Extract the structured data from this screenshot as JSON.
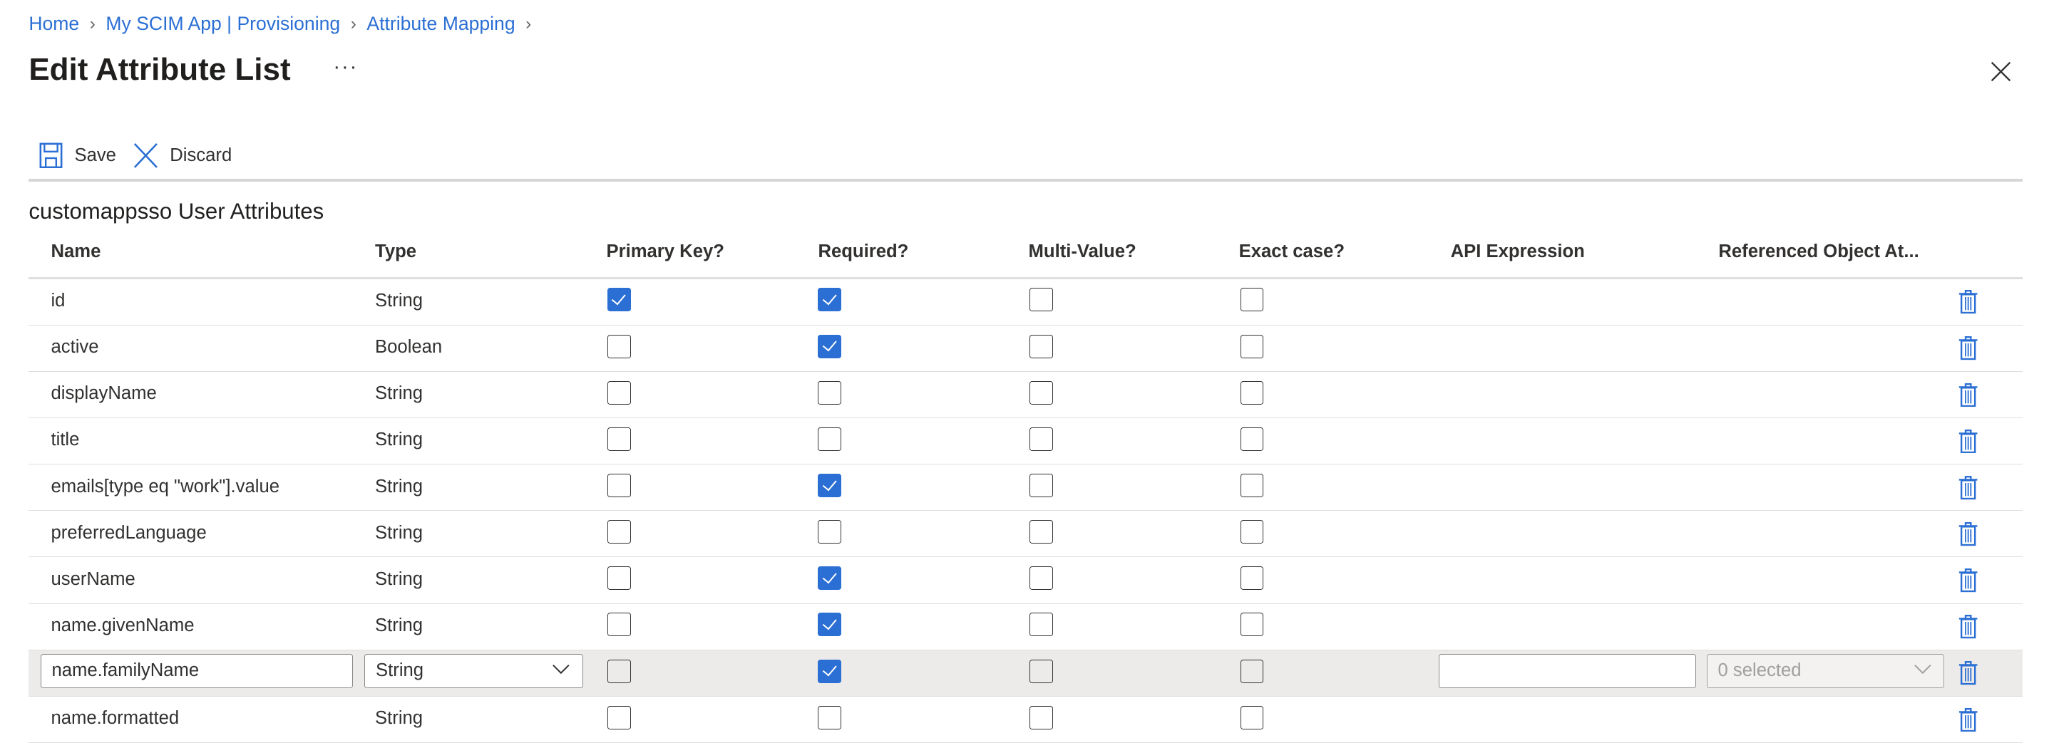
{
  "breadcrumb": [
    "Home",
    "My SCIM App | Provisioning",
    "Attribute Mapping"
  ],
  "title": "Edit Attribute List",
  "more_label": "···",
  "toolbar": {
    "save_label": "Save",
    "discard_label": "Discard"
  },
  "section_title": "customappsso User Attributes",
  "colors": {
    "accent": "#2b6fd4",
    "edit_row_bg": "#edebe9"
  },
  "columns": [
    "Name",
    "Type",
    "Primary Key?",
    "Required?",
    "Multi-Value?",
    "Exact case?",
    "API Expression",
    "Referenced Object At..."
  ],
  "rows": [
    {
      "name": "id",
      "type": "String",
      "primary": true,
      "required": true,
      "multi": false,
      "exact": false
    },
    {
      "name": "active",
      "type": "Boolean",
      "primary": false,
      "required": true,
      "multi": false,
      "exact": false
    },
    {
      "name": "displayName",
      "type": "String",
      "primary": false,
      "required": false,
      "multi": false,
      "exact": false
    },
    {
      "name": "title",
      "type": "String",
      "primary": false,
      "required": false,
      "multi": false,
      "exact": false
    },
    {
      "name": "emails[type eq \"work\"].value",
      "type": "String",
      "primary": false,
      "required": true,
      "multi": false,
      "exact": false
    },
    {
      "name": "preferredLanguage",
      "type": "String",
      "primary": false,
      "required": false,
      "multi": false,
      "exact": false
    },
    {
      "name": "userName",
      "type": "String",
      "primary": false,
      "required": true,
      "multi": false,
      "exact": false
    },
    {
      "name": "name.givenName",
      "type": "String",
      "primary": false,
      "required": true,
      "multi": false,
      "exact": false
    },
    {
      "name": "name.familyName",
      "type": "String",
      "primary": false,
      "required": true,
      "multi": false,
      "exact": false,
      "editing": true,
      "api_expression": "",
      "referenced_object": "0 selected"
    },
    {
      "name": "name.formatted",
      "type": "String",
      "primary": false,
      "required": false,
      "multi": false,
      "exact": false
    }
  ]
}
